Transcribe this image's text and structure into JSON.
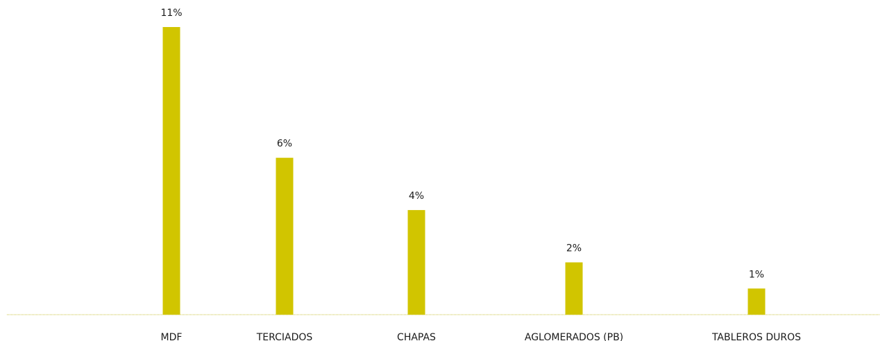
{
  "chart_data": {
    "type": "bar",
    "categories": [
      "MDF",
      "TERCIADOS",
      "CHAPAS",
      "AGLOMERADOS (PB)",
      "TABLEROS DUROS"
    ],
    "values": [
      11,
      6,
      4,
      2,
      1
    ],
    "data_labels": [
      "11%",
      "6%",
      "4%",
      "2%",
      "1%"
    ],
    "title": "",
    "xlabel": "",
    "ylabel": "",
    "ylim": [
      0,
      11
    ],
    "grid": false,
    "legend": "none",
    "colors": {
      "bar": "#d1c500",
      "baseline": "#c9c23a",
      "text": "#1a1a1a"
    }
  }
}
